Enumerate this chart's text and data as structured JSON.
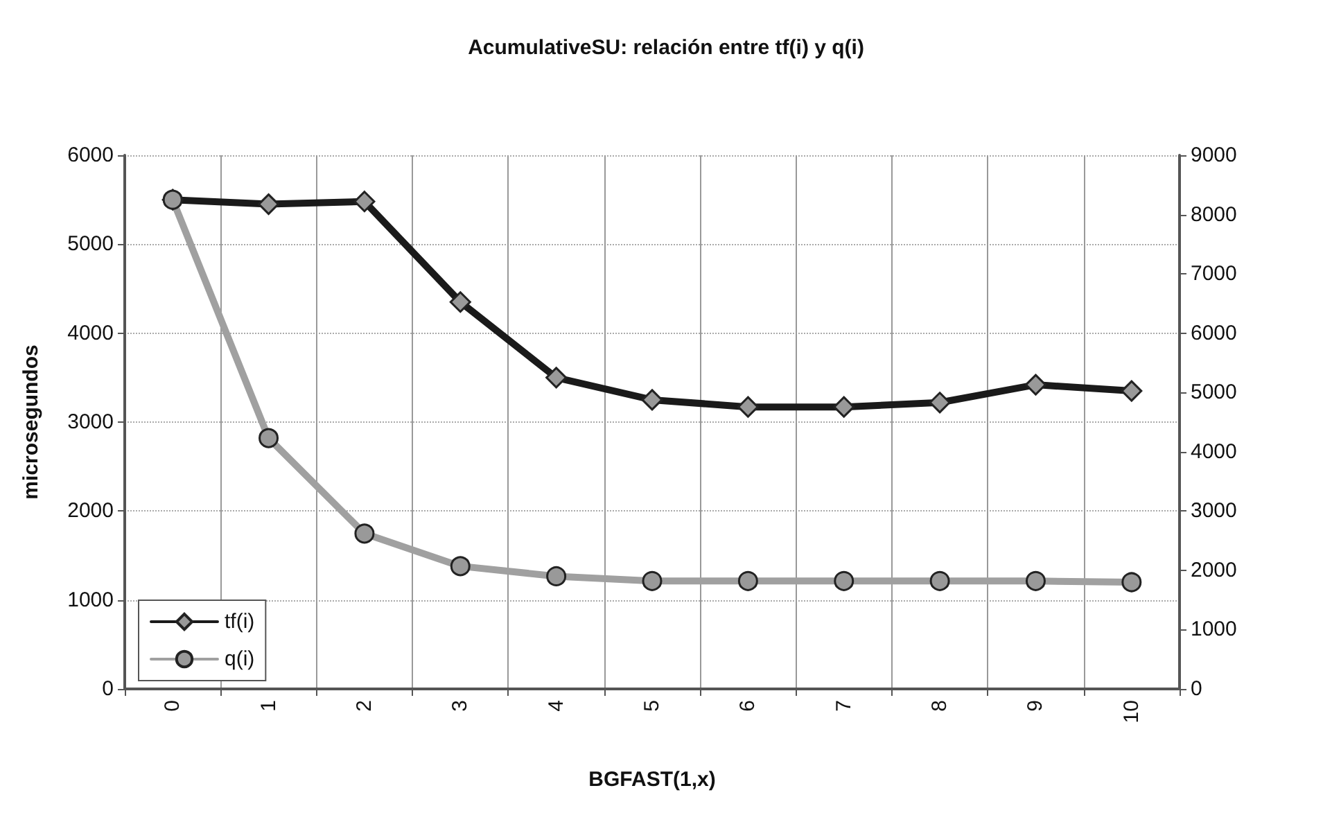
{
  "chart_data": {
    "type": "line",
    "title": "AcumulativeSU: relación entre tf(i) y q(i)",
    "xlabel": "BGFAST(1,x)",
    "ylabel": "microsegundos",
    "categories": [
      "0",
      "1",
      "2",
      "3",
      "4",
      "5",
      "6",
      "7",
      "8",
      "9",
      "10"
    ],
    "series": [
      {
        "name": "tf(i)",
        "color": "#1a1a1a",
        "marker": "diamond",
        "values": [
          5500,
          5450,
          5480,
          4350,
          3500,
          3250,
          3170,
          3170,
          3220,
          3420,
          3350
        ]
      },
      {
        "name": "q(i)",
        "color": "#a0a0a0",
        "marker": "circle",
        "axis": "y2",
        "values": [
          8250,
          4230,
          2620,
          2070,
          1900,
          1820,
          1820,
          1820,
          1820,
          1820,
          1800
        ]
      }
    ],
    "ylim": [
      0,
      6000
    ],
    "yticks": [
      0,
      1000,
      2000,
      3000,
      4000,
      5000,
      6000
    ],
    "y2lim": [
      0,
      9000
    ],
    "y2ticks": [
      0,
      1000,
      2000,
      3000,
      4000,
      5000,
      6000,
      7000,
      8000,
      9000
    ],
    "grid": true,
    "legend": "bottom left",
    "line_style": "solid"
  }
}
